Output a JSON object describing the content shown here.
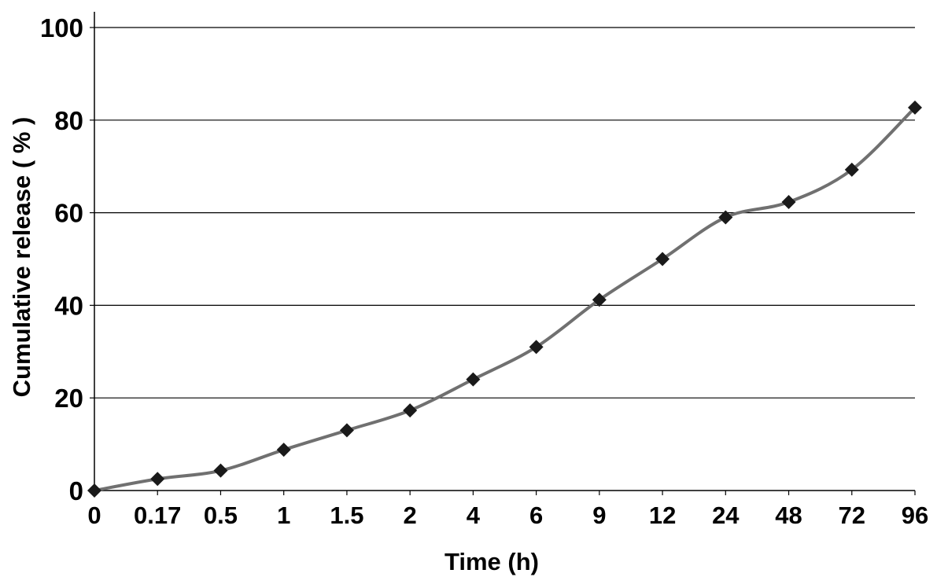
{
  "chart_data": {
    "type": "line",
    "title": "",
    "xlabel": "Time (h)",
    "ylabel": "Cumulative release ( % )",
    "categories": [
      "0",
      "0.17",
      "0.5",
      "1",
      "1.5",
      "2",
      "4",
      "6",
      "9",
      "12",
      "24",
      "48",
      "72",
      "96"
    ],
    "series": [
      {
        "values": [
          0,
          2.5,
          4.3,
          8.8,
          13.0,
          17.3,
          24.0,
          31.0,
          41.2,
          50.0,
          59.0,
          62.3,
          69.3,
          82.7
        ]
      }
    ],
    "yticks": [
      "0",
      "20",
      "40",
      "60",
      "80",
      "100"
    ],
    "ylim": [
      0,
      100
    ],
    "grid": "horizontal",
    "colors": {
      "line": "#707070",
      "marker": "#1a1a1a",
      "grid": "#000000"
    }
  }
}
